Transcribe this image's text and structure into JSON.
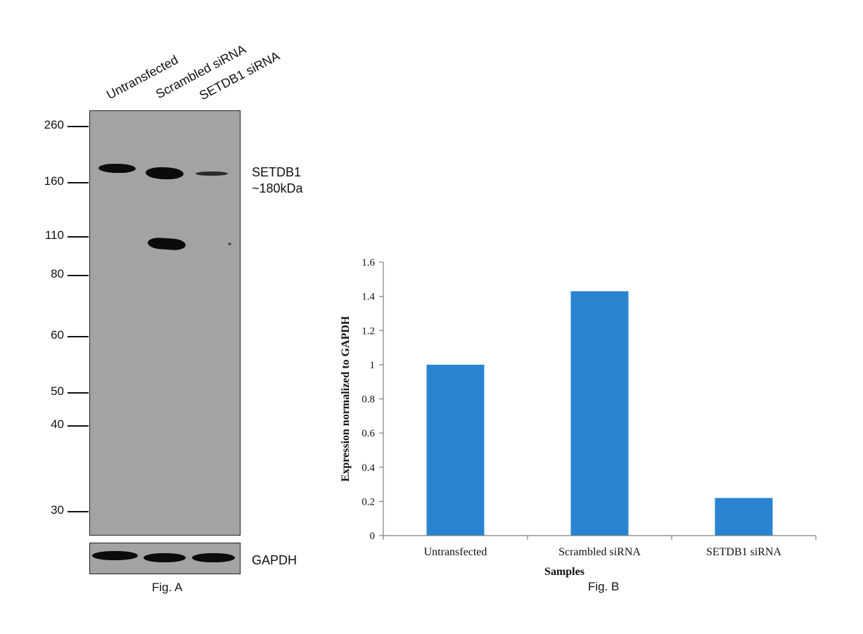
{
  "figure_a": {
    "caption": "Fig. A",
    "lane_labels": [
      "Untransfected",
      "Scrambled siRNA",
      "SETDB1 siRNA"
    ],
    "mw_markers": [
      "260",
      "160",
      "110",
      "80",
      "60",
      "50",
      "40",
      "30"
    ],
    "target_label_line1": "SETDB1",
    "target_label_line2": "~180kDa",
    "loading_control_label": "GAPDH"
  },
  "chart_data": {
    "type": "bar",
    "caption": "Fig. B",
    "categories": [
      "Untransfected",
      "Scrambled siRNA",
      "SETDB1 siRNA"
    ],
    "values": [
      1.0,
      1.43,
      0.22
    ],
    "xlabel": "Samples",
    "ylabel": "Expression normalized to GAPDH",
    "ylim": [
      0,
      1.6
    ],
    "yticks": [
      "0",
      "0.2",
      "0.4",
      "0.6",
      "0.8",
      "1",
      "1.2",
      "1.4",
      "1.6"
    ],
    "bar_color": "#2a84d2",
    "grid": false
  }
}
